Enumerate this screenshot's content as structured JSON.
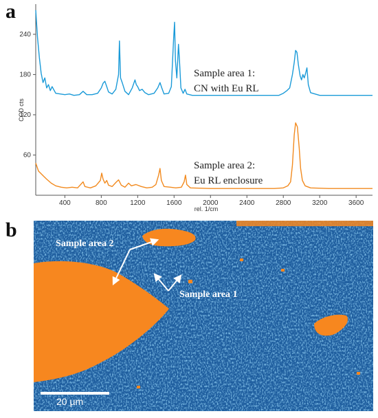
{
  "panels": {
    "a": "a",
    "b": "b"
  },
  "chart_data": {
    "type": "line",
    "xlabel": "rel. 1/cm",
    "ylabel": "CCD cts",
    "xlim": [
      80,
      3780
    ],
    "ylim": [
      0,
      285
    ],
    "xticks": [
      400,
      800,
      1200,
      1600,
      2000,
      2400,
      2800,
      3200,
      3600
    ],
    "yticks": [
      60,
      120,
      180,
      240
    ],
    "grid": false,
    "series": [
      {
        "color": "#1a9ad8",
        "annotation": [
          "Sample area 1:",
          "CN with Eu RL"
        ],
        "baseline": 149,
        "points": [
          [
            80,
            276
          ],
          [
            100,
            235
          ],
          [
            120,
            205
          ],
          [
            140,
            182
          ],
          [
            160,
            168
          ],
          [
            180,
            175
          ],
          [
            200,
            160
          ],
          [
            220,
            165
          ],
          [
            240,
            156
          ],
          [
            260,
            162
          ],
          [
            300,
            152
          ],
          [
            350,
            151
          ],
          [
            400,
            150
          ],
          [
            450,
            151
          ],
          [
            500,
            149
          ],
          [
            560,
            150
          ],
          [
            600,
            155
          ],
          [
            640,
            150
          ],
          [
            700,
            150
          ],
          [
            760,
            152
          ],
          [
            800,
            160
          ],
          [
            820,
            167
          ],
          [
            840,
            170
          ],
          [
            860,
            162
          ],
          [
            880,
            154
          ],
          [
            920,
            151
          ],
          [
            960,
            158
          ],
          [
            990,
            180
          ],
          [
            1000,
            230
          ],
          [
            1012,
            175
          ],
          [
            1030,
            168
          ],
          [
            1060,
            155
          ],
          [
            1100,
            150
          ],
          [
            1140,
            160
          ],
          [
            1170,
            172
          ],
          [
            1185,
            165
          ],
          [
            1200,
            162
          ],
          [
            1220,
            156
          ],
          [
            1250,
            158
          ],
          [
            1280,
            153
          ],
          [
            1320,
            150
          ],
          [
            1380,
            152
          ],
          [
            1420,
            160
          ],
          [
            1445,
            168
          ],
          [
            1465,
            160
          ],
          [
            1490,
            151
          ],
          [
            1540,
            152
          ],
          [
            1570,
            162
          ],
          [
            1595,
            233
          ],
          [
            1605,
            258
          ],
          [
            1615,
            200
          ],
          [
            1630,
            175
          ],
          [
            1648,
            225
          ],
          [
            1660,
            200
          ],
          [
            1675,
            160
          ],
          [
            1700,
            152
          ],
          [
            1720,
            158
          ],
          [
            1740,
            151
          ],
          [
            1800,
            149
          ],
          [
            1900,
            149
          ],
          [
            2000,
            149
          ],
          [
            2200,
            149
          ],
          [
            2400,
            149
          ],
          [
            2600,
            149
          ],
          [
            2750,
            149
          ],
          [
            2800,
            152
          ],
          [
            2840,
            156
          ],
          [
            2870,
            160
          ],
          [
            2900,
            180
          ],
          [
            2920,
            198
          ],
          [
            2935,
            216
          ],
          [
            2950,
            213
          ],
          [
            2965,
            195
          ],
          [
            2985,
            178
          ],
          [
            3000,
            172
          ],
          [
            3015,
            180
          ],
          [
            3030,
            175
          ],
          [
            3045,
            182
          ],
          [
            3060,
            190
          ],
          [
            3075,
            165
          ],
          [
            3100,
            153
          ],
          [
            3200,
            149
          ],
          [
            3400,
            149
          ],
          [
            3600,
            149
          ],
          [
            3780,
            149
          ]
        ]
      },
      {
        "color": "#f28a1e",
        "annotation": [
          "Sample area 2:",
          "Eu RL enclosure"
        ],
        "baseline": 10,
        "points": [
          [
            80,
            48
          ],
          [
            110,
            36
          ],
          [
            140,
            32
          ],
          [
            170,
            28
          ],
          [
            200,
            24
          ],
          [
            250,
            18
          ],
          [
            300,
            14
          ],
          [
            360,
            12
          ],
          [
            420,
            11
          ],
          [
            480,
            12
          ],
          [
            540,
            11
          ],
          [
            600,
            20
          ],
          [
            620,
            13
          ],
          [
            680,
            11
          ],
          [
            740,
            14
          ],
          [
            790,
            22
          ],
          [
            805,
            33
          ],
          [
            820,
            24
          ],
          [
            840,
            18
          ],
          [
            860,
            22
          ],
          [
            880,
            15
          ],
          [
            920,
            13
          ],
          [
            960,
            19
          ],
          [
            990,
            23
          ],
          [
            1020,
            15
          ],
          [
            1060,
            12
          ],
          [
            1100,
            18
          ],
          [
            1130,
            14
          ],
          [
            1180,
            16
          ],
          [
            1240,
            13
          ],
          [
            1300,
            11
          ],
          [
            1360,
            12
          ],
          [
            1400,
            16
          ],
          [
            1430,
            30
          ],
          [
            1445,
            40
          ],
          [
            1460,
            22
          ],
          [
            1490,
            13
          ],
          [
            1560,
            12
          ],
          [
            1620,
            11
          ],
          [
            1680,
            12
          ],
          [
            1710,
            20
          ],
          [
            1725,
            30
          ],
          [
            1740,
            16
          ],
          [
            1780,
            11
          ],
          [
            2000,
            10
          ],
          [
            2400,
            10
          ],
          [
            2700,
            10
          ],
          [
            2800,
            11
          ],
          [
            2850,
            14
          ],
          [
            2880,
            20
          ],
          [
            2900,
            45
          ],
          [
            2920,
            90
          ],
          [
            2935,
            108
          ],
          [
            2955,
            102
          ],
          [
            2975,
            70
          ],
          [
            2990,
            40
          ],
          [
            3010,
            22
          ],
          [
            3040,
            14
          ],
          [
            3100,
            11
          ],
          [
            3300,
            10
          ],
          [
            3600,
            10
          ],
          [
            3780,
            10
          ]
        ]
      }
    ]
  },
  "micrograph": {
    "colors": {
      "background": "#1e5d9e",
      "speckle": "#3f94d8",
      "phase": "#f7871f"
    },
    "labels": {
      "area2": "Sample area 2",
      "area1": "Sample area 1"
    },
    "scale_bar": "20 µm"
  }
}
